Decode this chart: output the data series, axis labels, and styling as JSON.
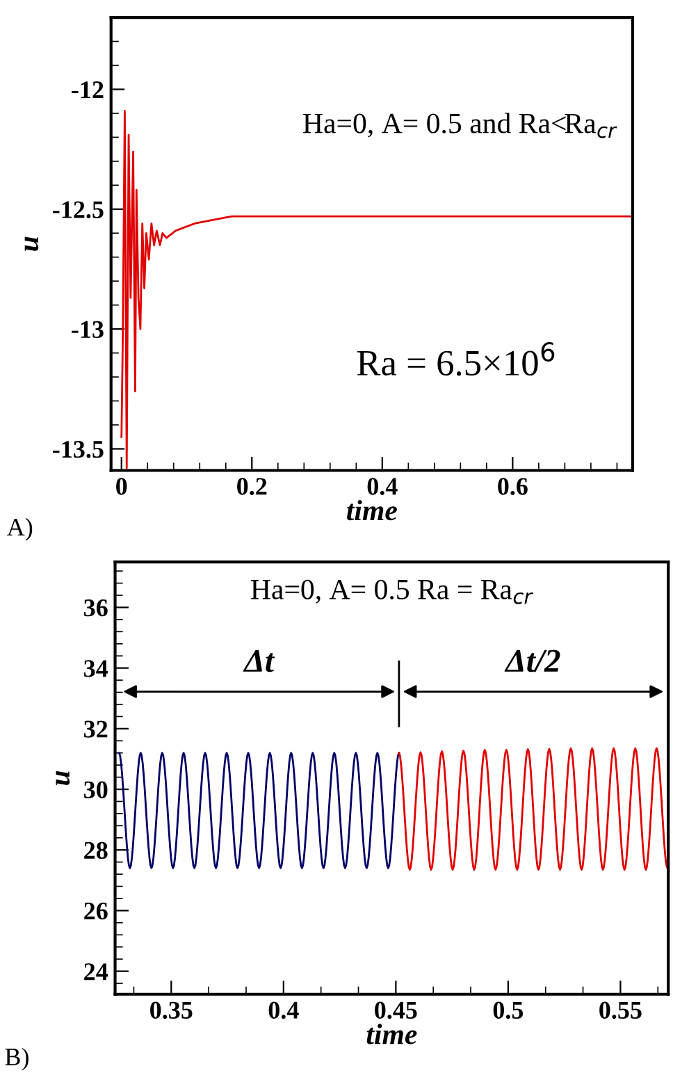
{
  "chart_data": [
    {
      "type": "line",
      "xlabel": "time",
      "ylabel": "u",
      "xlim": [
        -0.016,
        0.784
      ],
      "ylim": [
        -13.59,
        -11.7
      ],
      "xticks": [
        0,
        0.2,
        0.4,
        0.6
      ],
      "yticks": [
        -12,
        -12.5,
        -13,
        -13.5
      ],
      "grid": false,
      "legend": false,
      "series": [
        {
          "color": "#e00000",
          "x": [
            0.0,
            0.002,
            0.005,
            0.008,
            0.011,
            0.014,
            0.018,
            0.021,
            0.023,
            0.026,
            0.029,
            0.032,
            0.035,
            0.038,
            0.042,
            0.046,
            0.05,
            0.054,
            0.059,
            0.063,
            0.069,
            0.083,
            0.112,
            0.169,
            0.24,
            0.5,
            0.784
          ],
          "values": [
            -13.45,
            -13.04,
            -12.09,
            -13.58,
            -12.19,
            -12.87,
            -12.26,
            -13.26,
            -12.42,
            -12.87,
            -13.0,
            -12.56,
            -12.83,
            -12.6,
            -12.71,
            -12.56,
            -12.65,
            -12.59,
            -12.65,
            -12.6,
            -12.62,
            -12.59,
            -12.56,
            -12.53,
            -12.53,
            -12.53,
            -12.53
          ]
        }
      ],
      "annotations": [
        "Ha=0, A= 0.5 and Ra<Ra$_{cr}$",
        "Ra = 6.5×10$^{6}$",
        "A)"
      ]
    },
    {
      "type": "line",
      "xlabel": "time",
      "ylabel": "u",
      "xlim": [
        0.325,
        0.5713
      ],
      "ylim": [
        23.24,
        37.5
      ],
      "xticks": [
        0.35,
        0.4,
        0.45,
        0.5,
        0.55
      ],
      "yticks": [
        24,
        26,
        28,
        30,
        32,
        34,
        36
      ],
      "grid": false,
      "legend": false,
      "series": [
        {
          "color": "#000066",
          "x": [
            0.3268,
            0.3316,
            0.3364,
            0.3412,
            0.346,
            0.3508,
            0.3555,
            0.3603,
            0.3651,
            0.3699,
            0.3747,
            0.3795,
            0.3843,
            0.3891,
            0.3939,
            0.3987,
            0.4034,
            0.4082,
            0.413,
            0.4178,
            0.4226,
            0.4274,
            0.4322,
            0.437,
            0.4418,
            0.4466,
            0.4514
          ],
          "values": [
            31.2,
            27.4,
            31.2,
            27.4,
            31.2,
            27.4,
            31.2,
            27.4,
            31.2,
            27.4,
            31.2,
            27.4,
            31.2,
            27.4,
            31.2,
            27.4,
            31.2,
            27.4,
            31.2,
            27.4,
            31.2,
            27.4,
            31.2,
            27.4,
            31.2,
            27.4,
            31.2
          ]
        },
        {
          "color": "#e00000",
          "x": [
            0.4514,
            0.4562,
            0.461,
            0.4657,
            0.4705,
            0.4753,
            0.4801,
            0.4849,
            0.4896,
            0.4944,
            0.4992,
            0.504,
            0.5088,
            0.5135,
            0.5183,
            0.5231,
            0.5279,
            0.5327,
            0.5374,
            0.5422,
            0.547,
            0.5518,
            0.5566,
            0.5613,
            0.5661,
            0.5709
          ],
          "values": [
            31.2,
            27.35,
            31.22,
            27.35,
            31.25,
            27.35,
            31.27,
            27.35,
            31.3,
            27.35,
            31.3,
            27.35,
            31.32,
            27.35,
            31.33,
            27.35,
            31.35,
            27.35,
            31.35,
            27.35,
            31.35,
            27.35,
            31.35,
            27.35,
            31.35,
            27.4
          ]
        }
      ],
      "ref_lines": [
        {
          "axis": "x",
          "value": 0.4514,
          "color": "#000000"
        }
      ],
      "annotations": [
        "Δt",
        "Δt/2",
        "Ha=0, A= 0.5 Ra = Ra$_{cr}$",
        "B)"
      ]
    }
  ]
}
